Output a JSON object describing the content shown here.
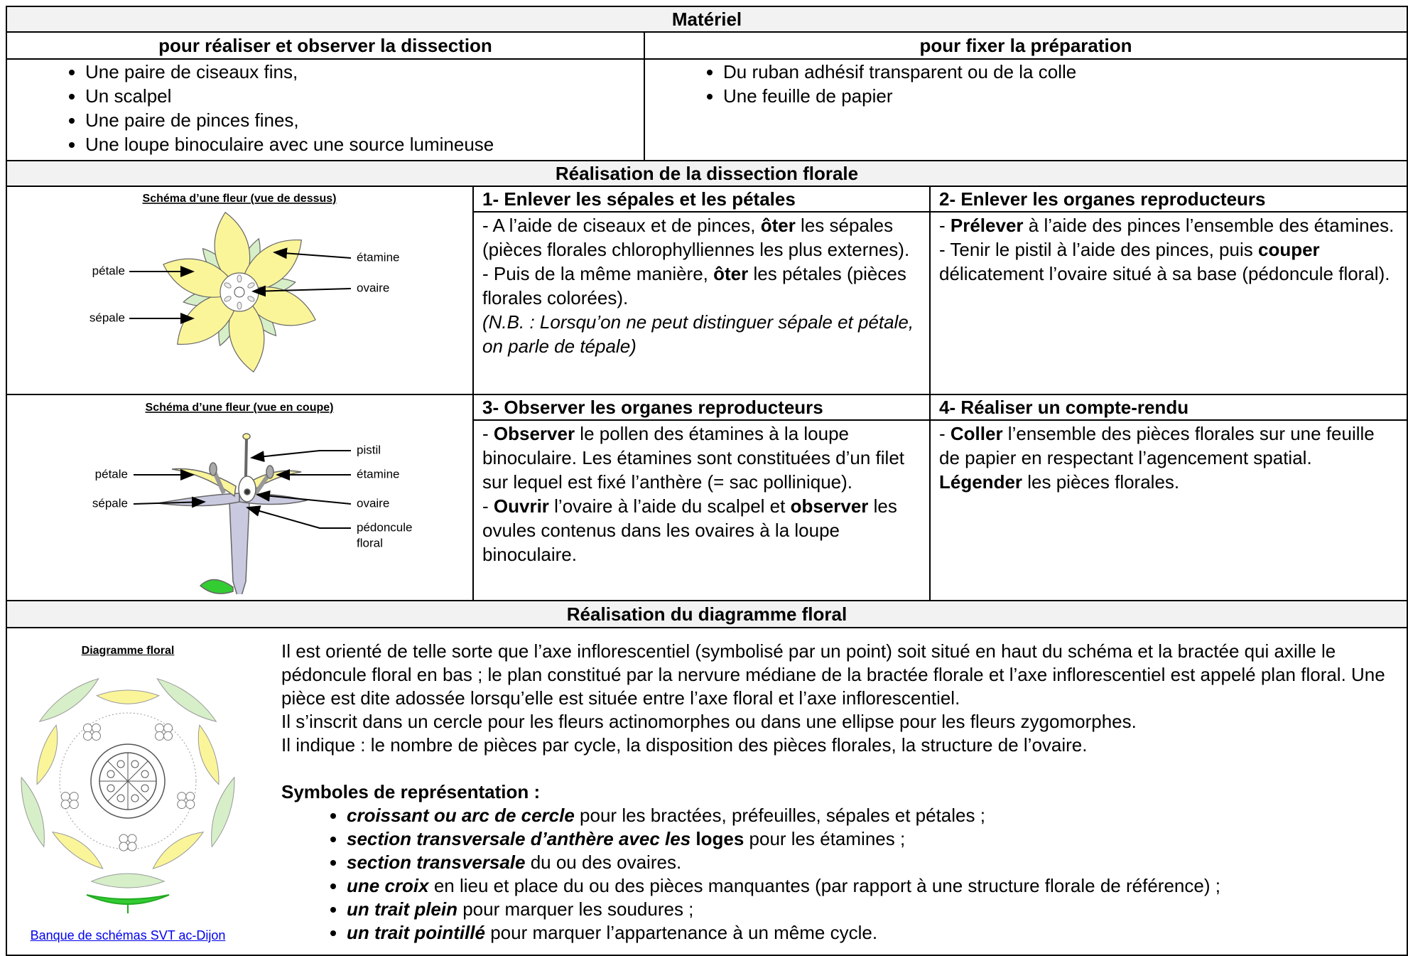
{
  "materiel": {
    "title": "Matériel",
    "dissection": {
      "heading": "pour réaliser et observer la dissection",
      "items": [
        "Une paire de ciseaux fins,",
        "Un scalpel",
        "Une paire de pinces fines,",
        "Une loupe binoculaire avec une source lumineuse"
      ]
    },
    "fixation": {
      "heading": "pour fixer la préparation",
      "items": [
        "Du ruban adhésif transparent ou de la colle",
        "Une feuille de papier"
      ]
    }
  },
  "dissection": {
    "title": "Réalisation de la dissection florale",
    "schema_dessus": {
      "title": "Schéma d’une fleur (vue de dessus)",
      "labels": [
        "pétale",
        "sépale",
        "étamine",
        "ovaire"
      ]
    },
    "schema_coupe": {
      "title": "Schéma d’une fleur (vue en coupe)",
      "labels": [
        "pétale",
        "sépale",
        "pistil",
        "étamine",
        "ovaire",
        "pédoncule",
        "floral"
      ]
    },
    "steps": [
      {
        "heading": "1- Enlever les sépales et les pétales",
        "paragraphs": [
          [
            "- A l’aide de ciseaux et de pinces, ",
            "ôter",
            " les sépales (pièces florales chlorophylliennes les plus externes)."
          ],
          [
            "- Puis de la même manière, ",
            "ôter",
            " les pétales (pièces florales colorées)."
          ],
          [
            "(N.B. : Lorsqu’on ne peut distinguer sépale et pétale, on parle de tépale)"
          ]
        ]
      },
      {
        "heading": "2- Enlever les organes reproducteurs",
        "paragraphs": [
          [
            "- ",
            "Prélever",
            " à l’aide des pinces l’ensemble des étamines."
          ],
          [
            "- Tenir le pistil à l’aide des pinces, puis ",
            "couper",
            " délicatement l’ovaire situé à sa base (pédoncule floral)."
          ]
        ]
      },
      {
        "heading": "3- Observer les organes reproducteurs",
        "paragraphs": [
          [
            " - ",
            "Observer",
            " le pollen des étamines à la loupe binoculaire. Les étamines sont constituées d’un filet sur lequel est fixé l’anthère (= sac pollinique)."
          ],
          [
            "- ",
            "Ouvrir",
            " l’ovaire à l’aide du scalpel et ",
            "observer",
            " les ovules contenus dans les ovaires à la loupe binoculaire."
          ]
        ]
      },
      {
        "heading": "4- Réaliser un compte-rendu",
        "paragraphs": [
          [
            "- ",
            "Coller",
            " l’ensemble des pièces florales sur une feuille de papier en respectant l’agencement spatial. ",
            "Légender",
            " les pièces florales."
          ]
        ]
      }
    ]
  },
  "diagramme": {
    "title": "Réalisation du diagramme floral",
    "figure_title": "Diagramme floral",
    "source": "Banque de schémas SVT ac-Dijon",
    "paragraphs": [
      "Il est orienté de telle sorte que l’axe inflorescentiel (symbolisé par un point) soit situé en haut du schéma et la bractée qui axille le pédoncule floral en bas ; le plan constitué par la nervure médiane de la bractée florale et l’axe inflorescentiel est appelé plan floral. Une pièce est dite adossée lorsqu’elle est située entre l’axe floral et l’axe inflorescentiel.",
      "Il s’inscrit dans un cercle pour les fleurs actinomorphes ou dans une ellipse pour les fleurs zygomorphes.",
      "Il indique : le nombre de pièces par cycle, la disposition des pièces florales, la structure de l’ovaire."
    ],
    "symbols_heading": "Symboles de représentation :",
    "symbols": [
      [
        "croissant ou arc de cercle",
        " pour les bractées, préfeuilles, sépales et pétales ;"
      ],
      [
        "section transversale d’anthère avec les ",
        "loges",
        " pour les étamines ;"
      ],
      [
        "section transversale",
        " du ou des ovaires."
      ],
      [
        "une croix",
        " en lieu et place du ou des pièces manquantes (par rapport à une structure florale de référence) ;"
      ],
      [
        "un trait plein",
        " pour marquer les soudures ;"
      ],
      [
        "un trait pointillé",
        " pour marquer l’appartenance à un même cycle."
      ]
    ]
  }
}
